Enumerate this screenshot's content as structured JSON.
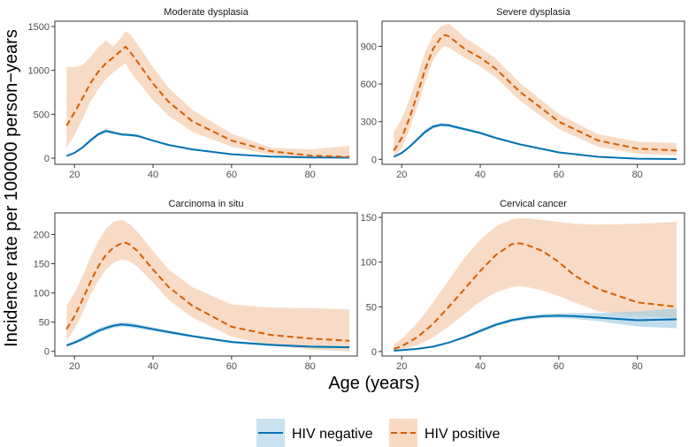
{
  "chart_data": {
    "type": "line",
    "layout": "2x2 facets",
    "xlabel": "Age (years)",
    "ylabel": "Incidence rate per 100000 person−years",
    "xlim": [
      15,
      92
    ],
    "xticks": [
      20,
      40,
      60,
      80
    ],
    "legend_position": "bottom",
    "legend": [
      {
        "name": "HIV negative",
        "color": "#0072b2",
        "band_color": "#a6cee3",
        "style": "solid"
      },
      {
        "name": "HIV positive",
        "color": "#d55e00",
        "band_color": "#f6cfb3",
        "style": "dashed"
      }
    ],
    "panels": [
      {
        "title": "Moderate dysplasia",
        "ylim": [
          -70,
          1560
        ],
        "yticks": [
          0,
          500,
          1000,
          1500
        ],
        "series": [
          {
            "name": "HIV negative",
            "x": [
              18,
              20,
              22,
              24,
              26,
              28,
              30,
              32,
              34,
              36,
              40,
              44,
              50,
              60,
              70,
              80,
              90
            ],
            "y": [
              25,
              60,
              120,
              200,
              270,
              310,
              290,
              270,
              265,
              255,
              200,
              150,
              100,
              45,
              18,
              8,
              5
            ],
            "lower": [
              20,
              50,
              105,
              180,
              250,
              290,
              272,
              255,
              250,
              240,
              190,
              140,
              95,
              40,
              15,
              6,
              3
            ],
            "upper": [
              30,
              70,
              135,
              220,
              290,
              330,
              308,
              285,
              280,
              270,
              210,
              160,
              105,
              50,
              22,
              10,
              8
            ]
          },
          {
            "name": "HIV positive",
            "x": [
              18,
              20,
              22,
              24,
              26,
              28,
              30,
              32,
              33,
              34,
              36,
              40,
              44,
              50,
              60,
              70,
              80,
              90
            ],
            "y": [
              370,
              520,
              680,
              850,
              980,
              1080,
              1150,
              1230,
              1270,
              1220,
              1100,
              850,
              640,
              420,
              200,
              80,
              30,
              15
            ],
            "lower": [
              120,
              260,
              440,
              640,
              780,
              900,
              980,
              1050,
              1080,
              1000,
              880,
              660,
              480,
              300,
              130,
              40,
              5,
              0
            ],
            "upper": [
              1040,
              1040,
              1060,
              1150,
              1260,
              1340,
              1270,
              1380,
              1440,
              1420,
              1300,
              1040,
              800,
              550,
              280,
              120,
              100,
              140
            ]
          }
        ]
      },
      {
        "title": "Severe dysplasia",
        "ylim": [
          -40,
          1100
        ],
        "yticks": [
          0,
          300,
          600,
          900
        ],
        "series": [
          {
            "name": "HIV negative",
            "x": [
              18,
              20,
              22,
              24,
              26,
              28,
              30,
              32,
              34,
              36,
              40,
              44,
              50,
              60,
              70,
              80,
              90
            ],
            "y": [
              20,
              50,
              100,
              160,
              220,
              260,
              275,
              270,
              255,
              240,
              210,
              170,
              120,
              55,
              20,
              5,
              2
            ],
            "lower": [
              15,
              42,
              90,
              148,
              205,
              245,
              260,
              256,
              242,
              228,
              200,
              160,
              112,
              50,
              16,
              3,
              0
            ],
            "upper": [
              25,
              58,
              110,
              172,
              235,
              275,
              290,
              284,
              268,
              252,
              220,
              180,
              128,
              60,
              24,
              7,
              4
            ]
          },
          {
            "name": "HIV positive",
            "x": [
              18,
              20,
              22,
              24,
              26,
              28,
              30,
              31,
              32,
              34,
              36,
              40,
              44,
              50,
              60,
              70,
              80,
              90
            ],
            "y": [
              70,
              170,
              330,
              520,
              720,
              880,
              970,
              990,
              980,
              930,
              880,
              810,
              720,
              540,
              300,
              150,
              85,
              70
            ],
            "lower": [
              20,
              90,
              240,
              420,
              620,
              790,
              880,
              900,
              890,
              850,
              810,
              740,
              650,
              470,
              240,
              100,
              45,
              30
            ],
            "upper": [
              220,
              320,
              480,
              660,
              860,
              990,
              1060,
              1070,
              1080,
              1030,
              970,
              890,
              800,
              610,
              360,
              200,
              140,
              130
            ]
          }
        ]
      },
      {
        "title": "Carcinoma in situ",
        "ylim": [
          -8,
          237
        ],
        "yticks": [
          0,
          50,
          100,
          150,
          200
        ],
        "series": [
          {
            "name": "HIV negative",
            "x": [
              18,
              20,
              22,
              24,
              26,
              28,
              30,
              32,
              34,
              36,
              40,
              44,
              50,
              60,
              70,
              80,
              90
            ],
            "y": [
              10,
              15,
              21,
              28,
              35,
              40,
              44,
              46,
              45,
              43,
              38,
              33,
              26,
              16,
              11,
              8,
              7
            ],
            "lower": [
              8,
              12,
              18,
              24,
              31,
              36,
              40,
              42,
              41,
              39,
              35,
              30,
              24,
              14,
              9,
              6,
              5
            ],
            "upper": [
              12,
              18,
              24,
              32,
              39,
              44,
              48,
              50,
              49,
              47,
              41,
              36,
              28,
              18,
              13,
              10,
              9
            ]
          },
          {
            "name": "HIV positive",
            "x": [
              18,
              20,
              22,
              24,
              26,
              28,
              30,
              32,
              33,
              34,
              36,
              40,
              44,
              50,
              60,
              70,
              80,
              90
            ],
            "y": [
              38,
              60,
              88,
              118,
              145,
              165,
              178,
              185,
              186,
              183,
              172,
              140,
              110,
              78,
              42,
              28,
              22,
              18
            ],
            "lower": [
              18,
              38,
              65,
              95,
              120,
              140,
              152,
              157,
              156,
              154,
              145,
              118,
              88,
              58,
              25,
              10,
              3,
              0
            ],
            "upper": [
              78,
              100,
              128,
              160,
              188,
              210,
              222,
              225,
              222,
              218,
              205,
              172,
              140,
              110,
              80,
              75,
              74,
              72
            ]
          }
        ]
      },
      {
        "title": "Cervical cancer",
        "ylim": [
          -5,
          155
        ],
        "yticks": [
          0,
          50,
          100,
          150
        ],
        "series": [
          {
            "name": "HIV negative",
            "x": [
              18,
              20,
              24,
              28,
              32,
              36,
              40,
              44,
              48,
              52,
              56,
              60,
              64,
              70,
              80,
              90
            ],
            "y": [
              1,
              1.5,
              3,
              5.5,
              10,
              16,
              23,
              30,
              35,
              38,
              39.5,
              40,
              39.5,
              38,
              35,
              36
            ],
            "lower": [
              0.5,
              1,
              2.5,
              5,
              9,
              14.5,
              21,
              28,
              33,
              36,
              37.5,
              37.5,
              36.5,
              34,
              28,
              26
            ],
            "upper": [
              1.5,
              2,
              3.5,
              6,
              11,
              17.5,
              25,
              32,
              37,
              40,
              42,
              42.5,
              43,
              43,
              45,
              48
            ]
          },
          {
            "name": "HIV positive",
            "x": [
              18,
              20,
              24,
              28,
              32,
              36,
              40,
              44,
              48,
              50,
              52,
              56,
              60,
              64,
              70,
              80,
              90
            ],
            "y": [
              3,
              6,
              16,
              31,
              50,
              70,
              90,
              108,
              120,
              121,
              119,
              112,
              100,
              85,
              70,
              55,
              50
            ],
            "lower": [
              1,
              2,
              7,
              16,
              28,
              42,
              56,
              66,
              72,
              73,
              72,
              68,
              62,
              55,
              45,
              40,
              38
            ],
            "upper": [
              8,
              14,
              32,
              55,
              80,
              105,
              125,
              140,
              148,
              149,
              149,
              147,
              145,
              143,
              142,
              143,
              145
            ]
          }
        ]
      }
    ]
  }
}
